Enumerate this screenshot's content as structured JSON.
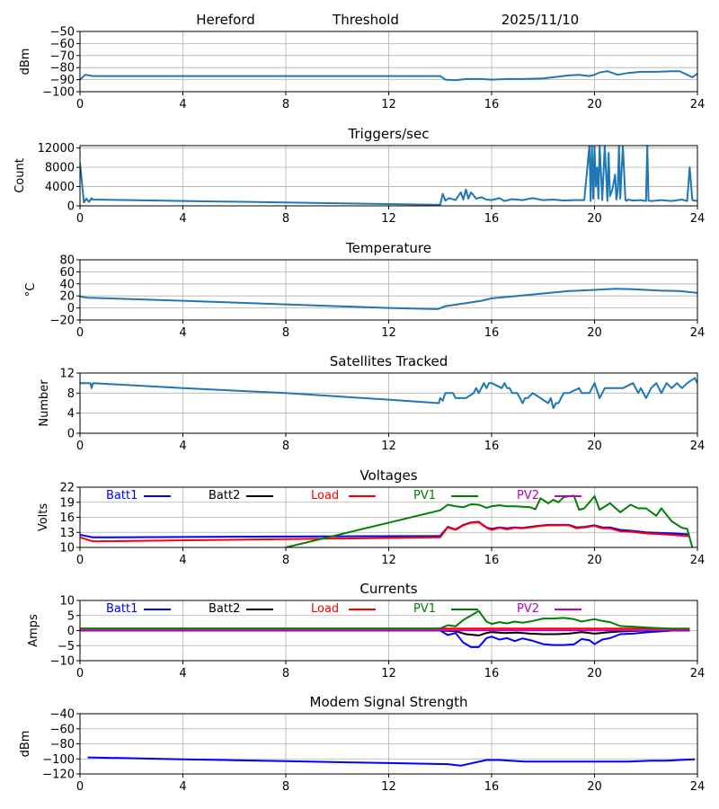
{
  "header": {
    "station": "Hereford",
    "mode": "Threshold",
    "date": "2025/11/10"
  },
  "chart_data": [
    {
      "id": "signal",
      "type": "line",
      "title": "",
      "xlabel": "",
      "ylabel": "dBm",
      "xlim": [
        0,
        24
      ],
      "ylim": [
        -100,
        -50
      ],
      "xticks": [
        "0",
        "4",
        "8",
        "12",
        "16",
        "20",
        "24"
      ],
      "yticks": [
        "−50",
        "−60",
        "−70",
        "−80",
        "−90",
        "−100"
      ],
      "ytick_values": [
        -50,
        -60,
        -70,
        -80,
        -90,
        -100
      ],
      "grid": true,
      "series": [
        {
          "name": "signal",
          "color": "#1f77b4",
          "x": [
            0,
            0.2,
            0.5,
            14,
            14.2,
            14.6,
            15,
            15.6,
            16,
            16.6,
            17.2,
            18,
            18.6,
            19,
            19.4,
            19.8,
            20,
            20.2,
            20.5,
            20.9,
            21.3,
            21.8,
            22.4,
            23,
            23.3,
            23.6,
            23.8,
            24
          ],
          "y": [
            -90,
            -86,
            -87,
            -87,
            -90,
            -90.5,
            -89.5,
            -89.5,
            -90,
            -89.5,
            -89.5,
            -89,
            -87.5,
            -86.5,
            -86,
            -87,
            -86,
            -84,
            -83,
            -86,
            -84.5,
            -83.5,
            -83.5,
            -83,
            -83,
            -86,
            -88,
            -85
          ]
        }
      ]
    },
    {
      "id": "triggers",
      "type": "line",
      "title": "Triggers/sec",
      "xlabel": "",
      "ylabel": "Count",
      "xlim": [
        0,
        24
      ],
      "ylim": [
        0,
        12500
      ],
      "xticks": [
        "0",
        "4",
        "8",
        "12",
        "16",
        "20",
        "24"
      ],
      "yticks": [
        "12000",
        "8000",
        "4000",
        "0"
      ],
      "ytick_values": [
        12000,
        8000,
        4000,
        0
      ],
      "grid": true,
      "series": [
        {
          "name": "triggers",
          "color": "#1f77b4",
          "x": [
            0,
            0.15,
            0.25,
            0.35,
            0.45,
            0.5,
            14,
            14.1,
            14.2,
            14.35,
            14.6,
            14.8,
            14.9,
            15,
            15.1,
            15.2,
            15.4,
            15.6,
            15.8,
            16,
            16.3,
            16.5,
            16.8,
            17.2,
            17.6,
            18,
            18.4,
            18.8,
            19.2,
            19.6,
            19.8,
            19.85,
            19.9,
            19.95,
            20.0,
            20.05,
            20.1,
            20.15,
            20.2,
            20.3,
            20.4,
            20.5,
            20.55,
            20.6,
            20.7,
            20.8,
            20.85,
            20.9,
            20.95,
            21.0,
            21.1,
            21.2,
            21.25,
            21.3,
            21.5,
            21.8,
            22.0,
            22.05,
            22.1,
            22.2,
            22.6,
            23.0,
            23.4,
            23.6,
            23.7,
            23.8,
            24
          ],
          "y": [
            9000,
            700,
            1500,
            800,
            1600,
            1300,
            200,
            2500,
            1100,
            1600,
            1200,
            2800,
            1300,
            3400,
            1500,
            2800,
            1500,
            1800,
            1300,
            1200,
            1600,
            1000,
            1400,
            1200,
            1600,
            1200,
            1300,
            1100,
            1200,
            1200,
            12500,
            1000,
            12500,
            1500,
            12500,
            4000,
            8000,
            1500,
            12500,
            1200,
            12500,
            1000,
            11000,
            2000,
            3500,
            6500,
            1300,
            3000,
            12500,
            1500,
            12500,
            1200,
            1000,
            1300,
            1100,
            1200,
            1000,
            12500,
            1100,
            1000,
            1200,
            1000,
            1300,
            1000,
            8000,
            1200,
            1000
          ]
        }
      ]
    },
    {
      "id": "temperature",
      "type": "line",
      "title": "Temperature",
      "xlabel": "",
      "ylabel": "°C",
      "xlim": [
        0,
        24
      ],
      "ylim": [
        -20,
        80
      ],
      "xticks": [
        "0",
        "4",
        "8",
        "12",
        "16",
        "20",
        "24"
      ],
      "yticks": [
        "80",
        "60",
        "40",
        "20",
        "0",
        "−20"
      ],
      "ytick_values": [
        80,
        60,
        40,
        20,
        0,
        -20
      ],
      "grid": true,
      "series": [
        {
          "name": "temperature",
          "color": "#1f77b4",
          "x": [
            0,
            0.3,
            4,
            8,
            12,
            13.9,
            14.2,
            15,
            15.6,
            16,
            17,
            18,
            19,
            20,
            20.8,
            21.5,
            22.5,
            23.3,
            24
          ],
          "y": [
            19,
            17,
            12,
            6,
            0,
            -2,
            3,
            8,
            12,
            16,
            20,
            24,
            28,
            30,
            32,
            31,
            29,
            28,
            25
          ]
        }
      ]
    },
    {
      "id": "satellites",
      "type": "line",
      "title": "Satellites Tracked",
      "xlabel": "",
      "ylabel": "Number",
      "xlim": [
        0,
        24
      ],
      "ylim": [
        0,
        12
      ],
      "xticks": [
        "0",
        "4",
        "8",
        "12",
        "16",
        "20",
        "24"
      ],
      "yticks": [
        "12",
        "8",
        "4",
        "0"
      ],
      "ytick_values": [
        12,
        8,
        4,
        0
      ],
      "grid": true,
      "series": [
        {
          "name": "satellites",
          "color": "#1f77b4",
          "x": [
            0,
            0.4,
            0.45,
            0.5,
            4,
            8,
            12,
            13.95,
            14.0,
            14.1,
            14.2,
            14.5,
            14.6,
            15.0,
            15.3,
            15.4,
            15.5,
            15.6,
            15.7,
            15.8,
            15.9,
            16.0,
            16.4,
            16.5,
            16.6,
            16.7,
            16.8,
            17.0,
            17.2,
            17.3,
            17.4,
            17.6,
            17.9,
            18.2,
            18.3,
            18.4,
            18.5,
            18.6,
            18.8,
            19.0,
            19.4,
            19.5,
            19.8,
            20.0,
            20.2,
            20.4,
            21.1,
            21.5,
            21.6,
            21.7,
            21.8,
            22.0,
            22.2,
            22.4,
            22.6,
            22.8,
            23.0,
            23.2,
            23.4,
            23.6,
            23.9,
            24
          ],
          "y": [
            10,
            10,
            9,
            10,
            9,
            8,
            6.7,
            6,
            7,
            6.5,
            8,
            8,
            7,
            7,
            8,
            9,
            8,
            9,
            10,
            9,
            10,
            10,
            9,
            10,
            9,
            9,
            8,
            8,
            6,
            7,
            7,
            8,
            7,
            6,
            7,
            5,
            6,
            6,
            8,
            8,
            9,
            8,
            8,
            10,
            7,
            9,
            9,
            10,
            9,
            8,
            9,
            7,
            9,
            10,
            8,
            10,
            9,
            10,
            9,
            10,
            11,
            10
          ]
        }
      ]
    },
    {
      "id": "voltages",
      "type": "line",
      "title": "Voltages",
      "xlabel": "",
      "ylabel": "Volts",
      "xlim": [
        0,
        24
      ],
      "ylim": [
        10,
        22
      ],
      "xticks": [
        "0",
        "4",
        "8",
        "12",
        "16",
        "20",
        "24"
      ],
      "yticks": [
        "22",
        "19",
        "16",
        "13",
        "10"
      ],
      "ytick_values": [
        22,
        19,
        16,
        13,
        10
      ],
      "grid": true,
      "legend": "top (single row inside axes)",
      "series": [
        {
          "name": "Batt1",
          "color": "#0000ff",
          "x": [
            0,
            0.5,
            14,
            14.3,
            14.6,
            14.9,
            15.2,
            15.5,
            15.8,
            16,
            16.3,
            16.6,
            16.9,
            17.2,
            17.5,
            17.8,
            18.2,
            18.6,
            19,
            19.3,
            19.6,
            20,
            20.3,
            20.6,
            21,
            21.5,
            22,
            23,
            23.7
          ],
          "y": [
            12.5,
            12,
            12.3,
            14.1,
            13.6,
            14.5,
            15.0,
            15.1,
            14.0,
            13.7,
            14.0,
            13.8,
            14.0,
            13.9,
            14.1,
            14.3,
            14.5,
            14.5,
            14.5,
            14.0,
            14.1,
            14.4,
            14.0,
            14.0,
            13.5,
            13.3,
            13.0,
            12.8,
            12.6
          ]
        },
        {
          "name": "Batt2",
          "color": "#000000",
          "x": [],
          "y": []
        },
        {
          "name": "Load",
          "color": "#ff0000",
          "x": [
            0,
            0.5,
            14,
            14.3,
            14.6,
            14.9,
            15.2,
            15.5,
            15.8,
            16,
            16.3,
            16.6,
            16.9,
            17.2,
            17.5,
            17.8,
            18.2,
            18.6,
            19,
            19.3,
            19.6,
            20,
            20.3,
            20.6,
            21,
            21.5,
            22,
            23,
            23.7
          ],
          "y": [
            12,
            11.2,
            12,
            14.0,
            13.5,
            14.4,
            14.9,
            15.0,
            13.9,
            13.5,
            13.9,
            13.6,
            13.9,
            13.8,
            14.0,
            14.2,
            14.4,
            14.4,
            14.4,
            13.8,
            14.0,
            14.3,
            13.8,
            13.8,
            13.2,
            13.1,
            12.8,
            12.5,
            12.2
          ]
        },
        {
          "name": "PV1",
          "color": "#008000",
          "x": [
            8,
            14,
            14.3,
            14.6,
            14.9,
            15.2,
            15.5,
            15.8,
            16,
            16.3,
            16.6,
            16.9,
            17.2,
            17.5,
            17.7,
            17.9,
            18.2,
            18.4,
            18.6,
            18.8,
            19,
            19.2,
            19.4,
            19.6,
            20,
            20.2,
            20.6,
            21,
            21.4,
            21.7,
            22,
            22.4,
            22.6,
            23,
            23.4,
            23.6,
            23.8
          ],
          "y": [
            10,
            17.4,
            18.5,
            18.2,
            18.0,
            18.6,
            18.5,
            17.9,
            18.2,
            18.4,
            18.2,
            18.2,
            18.1,
            18.0,
            17.6,
            19.8,
            18.8,
            19.5,
            19.0,
            20.0,
            20.2,
            20.3,
            17.5,
            17.8,
            20.2,
            17.5,
            18.8,
            17.0,
            18.5,
            17.8,
            17.8,
            16.3,
            17.8,
            15.2,
            13.9,
            13.7,
            10
          ]
        },
        {
          "name": "PV2",
          "color": "#bf00bf",
          "x": [],
          "y": []
        }
      ]
    },
    {
      "id": "currents",
      "type": "line",
      "title": "Currents",
      "xlabel": "",
      "ylabel": "Amps",
      "xlim": [
        0,
        24
      ],
      "ylim": [
        -10,
        10
      ],
      "xticks": [
        "0",
        "4",
        "8",
        "12",
        "16",
        "20",
        "24"
      ],
      "yticks": [
        "10",
        "5",
        "0",
        "−5",
        "−10"
      ],
      "ytick_values": [
        10,
        5,
        0,
        -5,
        -10
      ],
      "grid": true,
      "legend": "top (single row inside axes)",
      "series": [
        {
          "name": "Batt1",
          "color": "#0000ff",
          "x": [
            0,
            14,
            14.3,
            14.6,
            14.9,
            15.2,
            15.5,
            15.8,
            16,
            16.3,
            16.6,
            16.9,
            17.2,
            17.6,
            18,
            18.4,
            18.8,
            19.2,
            19.5,
            19.8,
            20,
            20.3,
            20.6,
            21,
            21.5,
            22,
            22.5,
            23,
            23.7
          ],
          "y": [
            0,
            0,
            -1.5,
            -0.8,
            -4,
            -5.5,
            -5.5,
            -2.5,
            -2,
            -3,
            -2.5,
            -3.5,
            -2.6,
            -3.4,
            -4.5,
            -4.8,
            -4.8,
            -4.6,
            -2.8,
            -3.2,
            -4.5,
            -3.0,
            -2.5,
            -1.2,
            -1,
            -0.6,
            -0.3,
            0,
            0
          ]
        },
        {
          "name": "Batt2",
          "color": "#000000",
          "x": [
            0,
            14,
            14.6,
            15,
            15.5,
            15.8,
            16,
            16.5,
            17,
            17.5,
            18,
            18.5,
            19,
            19.5,
            20,
            20.5,
            21,
            22,
            23,
            23.7
          ],
          "y": [
            0,
            0,
            -0.2,
            -1.2,
            -1.6,
            -0.8,
            -0.5,
            -0.8,
            -0.7,
            -1.0,
            -1.2,
            -1.2,
            -1.0,
            -0.5,
            -1.0,
            -0.6,
            -0.3,
            0,
            0,
            0
          ]
        },
        {
          "name": "Load",
          "color": "#ff0000",
          "x": [
            0,
            23.7
          ],
          "y": [
            0.7,
            0.7
          ]
        },
        {
          "name": "PV1",
          "color": "#008000",
          "x": [
            0,
            14,
            14.3,
            14.6,
            14.9,
            15.2,
            15.5,
            15.8,
            16,
            16.3,
            16.6,
            16.9,
            17.2,
            17.6,
            18,
            18.4,
            18.8,
            19.2,
            19.5,
            19.8,
            20,
            20.3,
            20.6,
            21,
            21.5,
            22,
            22.5,
            23,
            23.7
          ],
          "y": [
            0.7,
            0.7,
            1.8,
            1.4,
            3.5,
            5,
            6.5,
            3,
            2.2,
            2.8,
            2.4,
            3.0,
            2.6,
            3.2,
            4,
            4,
            4.2,
            3.8,
            3.0,
            3.5,
            3.8,
            3.2,
            2.8,
            1.5,
            1.3,
            1.0,
            0.8,
            0.6,
            0.5
          ]
        },
        {
          "name": "PV2",
          "color": "#bf00bf",
          "x": [
            0,
            23.7
          ],
          "y": [
            0.1,
            0.1
          ]
        }
      ]
    },
    {
      "id": "modem",
      "type": "line",
      "title": "Modem Signal Strength",
      "xlabel": "",
      "ylabel": "dBm",
      "xlim": [
        0,
        24
      ],
      "ylim": [
        -120,
        -40
      ],
      "xticks": [
        "0",
        "4",
        "8",
        "12",
        "16",
        "20",
        "24"
      ],
      "yticks": [
        "−40",
        "−60",
        "−80",
        "−100",
        "−120"
      ],
      "ytick_values": [
        -40,
        -60,
        -80,
        -100,
        -120
      ],
      "grid": true,
      "series": [
        {
          "name": "modem",
          "color": "#0000ff",
          "x": [
            0.3,
            4,
            8,
            12,
            14.3,
            14.8,
            15.8,
            16.3,
            17.3,
            18.5,
            21.3,
            22.2,
            22.8,
            23.3,
            23.9
          ],
          "y": [
            -98,
            -100.5,
            -103,
            -105.5,
            -107,
            -109,
            -101.5,
            -101.5,
            -103.5,
            -103.5,
            -103.5,
            -102.5,
            -102.5,
            -101.5,
            -100.5
          ]
        }
      ]
    }
  ]
}
